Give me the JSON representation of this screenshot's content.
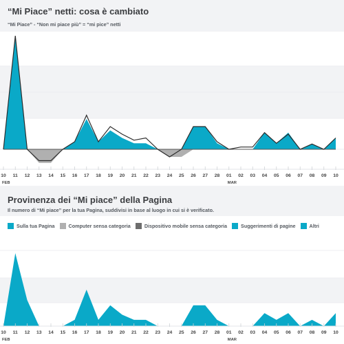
{
  "colors": {
    "teal": "#0aa9c8",
    "light_gray": "#b0b0b0",
    "dark_gray": "#6d6d6d",
    "line": "#2b2b2b",
    "band": "#f2f3f5"
  },
  "x_ticks": [
    "10",
    "11",
    "12",
    "13",
    "14",
    "15",
    "16",
    "17",
    "18",
    "19",
    "20",
    "21",
    "22",
    "23",
    "24",
    "25",
    "26",
    "27",
    "28",
    "01",
    "02",
    "03",
    "04",
    "05",
    "06",
    "07",
    "08",
    "09",
    "10"
  ],
  "month_labels": [
    {
      "label": "FEB",
      "index": 0
    },
    {
      "label": "MAR",
      "index": 19
    }
  ],
  "chart1": {
    "title": "“Mi Piace” netti: cosa è cambiato",
    "subtitle": "“Mi Piace” - “Non mi piace più” = “mi pice” netti",
    "legend": [
      {
        "label": "“Mi Piace”",
        "color": "#0aa9c8"
      },
      {
        "label": "“Non mi piace più”",
        "color": "#b0b0b0"
      },
      {
        "label": "“mi pice” netti",
        "color": "#6d6d6d"
      }
    ]
  },
  "chart2": {
    "title": "Provinenza dei “Mi piace” della Pagina",
    "subtitle": "Il numero di “Mi piace” per la tua Pagina, suddivisi in base al luogo in cui si è verificato.",
    "legend": [
      {
        "label": "Sulla tua Pagina",
        "color": "#0aa9c8"
      },
      {
        "label": "Computer sensa categoria",
        "color": "#b0b0b0"
      },
      {
        "label": "Dispositivo mobile sensa categoria",
        "color": "#6d6d6d"
      },
      {
        "label": "Suggerimenti di pagine",
        "color": "#0aa9c8"
      },
      {
        "label": "Altri",
        "color": "#0aa9c8"
      }
    ]
  },
  "chart_data": [
    {
      "type": "area",
      "title": "“Mi Piace” netti: cosa è cambiato",
      "categories": [
        "10",
        "11",
        "12",
        "13",
        "14",
        "15",
        "16",
        "17",
        "18",
        "19",
        "20",
        "21",
        "22",
        "23",
        "24",
        "25",
        "26",
        "27",
        "28",
        "01",
        "02",
        "03",
        "04",
        "05",
        "06",
        "07",
        "08",
        "09",
        "10"
      ],
      "ylim": [
        -3,
        15
      ],
      "series": [
        {
          "name": "“Mi Piace”",
          "values": [
            0,
            15,
            0,
            0,
            0,
            0,
            1,
            4,
            1,
            2.5,
            1.5,
            0.8,
            0.8,
            0,
            0,
            0,
            3,
            3,
            0.8,
            0,
            0,
            0,
            2.2,
            0.8,
            2.2,
            0,
            0.7,
            0,
            1.5
          ]
        },
        {
          "name": "“Non mi piace più”",
          "values": [
            0,
            0,
            0,
            1.8,
            1.8,
            0,
            0,
            0,
            0,
            0,
            0,
            0,
            0,
            0,
            1,
            1,
            0,
            0,
            0,
            0,
            0,
            0,
            0,
            0,
            0,
            0,
            0,
            0,
            0
          ]
        },
        {
          "name": "“mi pice” netti",
          "values": [
            0,
            15,
            0,
            -1.5,
            -1.5,
            0,
            1,
            4.5,
            1,
            3,
            2,
            1.2,
            1.5,
            0,
            -1,
            0,
            3,
            3,
            1,
            0,
            0.3,
            0.3,
            2.2,
            0.8,
            2,
            0,
            0.7,
            0,
            1.5
          ]
        }
      ]
    },
    {
      "type": "area",
      "title": "Provinenza dei “Mi piace” della Pagina",
      "categories": [
        "10",
        "11",
        "12",
        "13",
        "14",
        "15",
        "16",
        "17",
        "18",
        "19",
        "20",
        "21",
        "22",
        "23",
        "24",
        "25",
        "26",
        "27",
        "28",
        "01",
        "02",
        "03",
        "04",
        "05",
        "06",
        "07",
        "08",
        "09",
        "10"
      ],
      "ylim": [
        0,
        15
      ],
      "series": [
        {
          "name": "Sulla tua Pagina",
          "values": [
            0,
            14,
            5,
            0,
            0,
            0,
            1.2,
            7,
            1.2,
            4,
            2.2,
            1.2,
            1.2,
            0,
            0,
            0,
            4,
            4,
            1.2,
            0,
            0,
            0,
            2.5,
            1.2,
            2.5,
            0,
            1.2,
            0,
            2.5
          ]
        }
      ]
    }
  ]
}
